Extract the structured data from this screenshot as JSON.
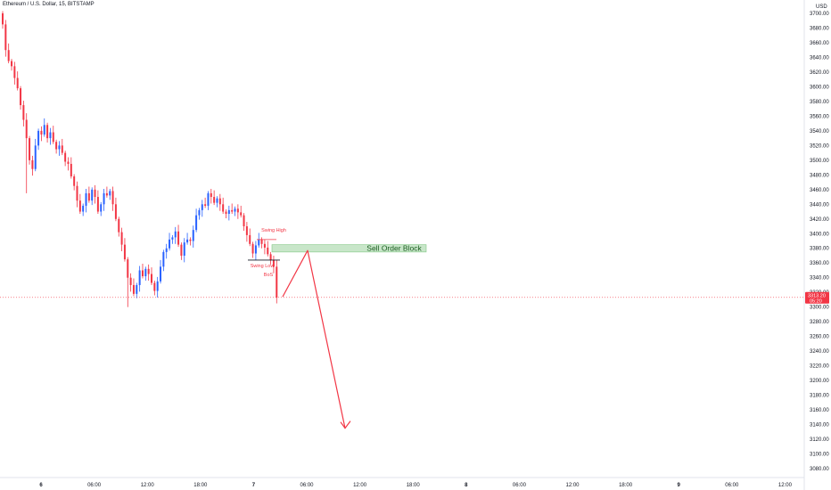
{
  "header": {
    "symbol_title": "Ethereum / U.S. Dollar, 15, BITSTAMP"
  },
  "price_axis": {
    "currency": "USD",
    "current_price": "3313.20",
    "countdown": "05:20"
  },
  "colors": {
    "up": "#2962ff",
    "down": "#f23645",
    "order_block_fill": "#c8e6c9",
    "order_block_border": "#81c784",
    "arrow": "#f23645",
    "price_line": "#f23645"
  },
  "annotations": {
    "swing_high": "Swing High",
    "swing_low": "Swing Low",
    "bos": "BoS",
    "order_block": "Sell Order Block"
  },
  "chart_data": {
    "type": "candlestick",
    "title": "Ethereum / U.S. Dollar, 15, BITSTAMP",
    "ylim": [
      3070,
      3710
    ],
    "yticks": [
      3700,
      3680,
      3660,
      3640,
      3620,
      3600,
      3580,
      3560,
      3540,
      3520,
      3500,
      3480,
      3460,
      3440,
      3420,
      3400,
      3380,
      3360,
      3340,
      3320,
      3300,
      3280,
      3260,
      3240,
      3220,
      3200,
      3180,
      3160,
      3140,
      3120,
      3100,
      3080
    ],
    "xticks": [
      "6",
      "06:00",
      "12:00",
      "18:00",
      "7",
      "06:00",
      "12:00",
      "18:00",
      "8",
      "06:00",
      "12:00",
      "18:00",
      "9",
      "06:00",
      "12:00"
    ],
    "last_price": 3313.2,
    "order_block": {
      "low": 3375,
      "high": 3385
    },
    "swing_high": 3392,
    "swing_low": 3364,
    "projection": [
      3314,
      3377,
      3135
    ],
    "closes": [
      3685,
      3650,
      3635,
      3628,
      3612,
      3598,
      3575,
      3555,
      3530,
      3500,
      3488,
      3520,
      3540,
      3535,
      3548,
      3530,
      3538,
      3525,
      3515,
      3520,
      3510,
      3498,
      3495,
      3478,
      3465,
      3445,
      3430,
      3438,
      3455,
      3445,
      3460,
      3450,
      3430,
      3440,
      3455,
      3452,
      3458,
      3440,
      3420,
      3402,
      3385,
      3365,
      3340,
      3330,
      3318,
      3330,
      3350,
      3342,
      3352,
      3345,
      3333,
      3322,
      3335,
      3355,
      3375,
      3380,
      3392,
      3395,
      3403,
      3385,
      3370,
      3388,
      3392,
      3390,
      3405,
      3425,
      3432,
      3440,
      3438,
      3455,
      3450,
      3442,
      3448,
      3440,
      3430,
      3427,
      3432,
      3430,
      3434,
      3429,
      3425,
      3410,
      3398,
      3386,
      3373,
      3384,
      3392,
      3386,
      3381,
      3372,
      3364,
      3355,
      3313
    ]
  }
}
